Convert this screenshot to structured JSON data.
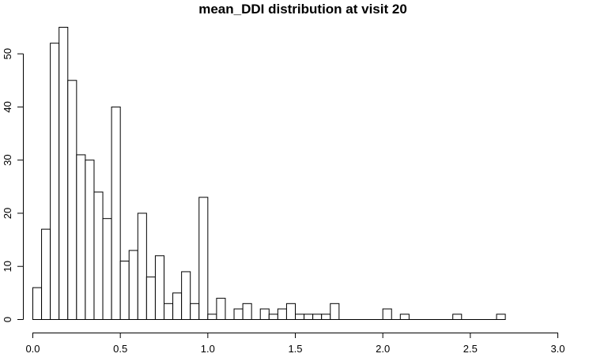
{
  "chart_data": {
    "type": "bar",
    "title": "mean_DDI distribution at visit 20",
    "xlabel": "",
    "ylabel": "",
    "bin_width": 0.05,
    "bins_start": 0.0,
    "values": [
      6,
      17,
      52,
      55,
      45,
      31,
      30,
      24,
      19,
      40,
      11,
      13,
      20,
      8,
      12,
      3,
      5,
      9,
      3,
      23,
      1,
      4,
      0,
      2,
      3,
      0,
      2,
      1,
      2,
      3,
      1,
      1,
      1,
      1,
      3,
      0,
      0,
      0,
      0,
      0,
      2,
      0,
      1,
      0,
      0,
      0,
      0,
      0,
      1,
      0,
      0,
      0,
      0,
      1
    ],
    "xlim": [
      0,
      3.0
    ],
    "ylim": [
      0,
      55
    ],
    "x_ticks": [
      0.0,
      0.5,
      1.0,
      1.5,
      2.0,
      2.5,
      3.0
    ],
    "x_tick_labels": [
      "0.0",
      "0.5",
      "1.0",
      "1.5",
      "2.0",
      "2.5",
      "3.0"
    ],
    "y_ticks": [
      0,
      10,
      20,
      30,
      40,
      50
    ],
    "y_tick_labels": [
      "0",
      "10",
      "20",
      "30",
      "40",
      "50"
    ],
    "grid": false,
    "bar_fill": "#ffffff",
    "bar_stroke": "#000000"
  }
}
